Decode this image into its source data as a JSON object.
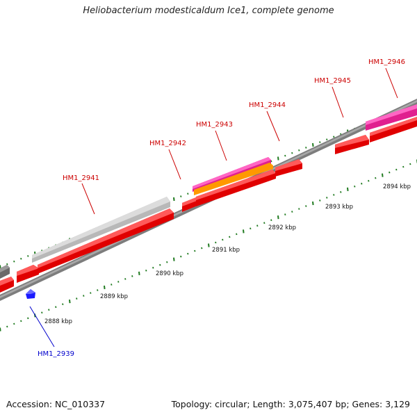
{
  "title": "Heliobacterium modesticaldum Ice1, complete genome",
  "footer": {
    "accession": "Accession: NC_010337",
    "summary": "Topology: circular; Length: 3,075,407 bp; Genes: 3,129"
  },
  "colors": {
    "backbone": "#808080",
    "tick": "#1f7a1f",
    "cds": "#ff0000",
    "label_red": "#cc0000",
    "label_blue": "#0000cc",
    "rrna_magenta": "#e0208f",
    "orange": "#ff9900",
    "grey_feature": "#c0c0c0",
    "dark_feature": "#606060",
    "blue_feature": "#1a1aff"
  },
  "scale_labels": [
    "2888 kbp",
    "2889 kbp",
    "2890 kbp",
    "2891 kbp",
    "2892 kbp",
    "2893 kbp",
    "2894 kbp"
  ],
  "gene_labels": [
    {
      "text": "HM1_2939",
      "color": "blue"
    },
    {
      "text": "HM1_2941",
      "color": "red"
    },
    {
      "text": "HM1_2942",
      "color": "red"
    },
    {
      "text": "HM1_2943",
      "color": "red"
    },
    {
      "text": "HM1_2944",
      "color": "red"
    },
    {
      "text": "HM1_2945",
      "color": "red"
    },
    {
      "text": "HM1_2946",
      "color": "red"
    }
  ]
}
